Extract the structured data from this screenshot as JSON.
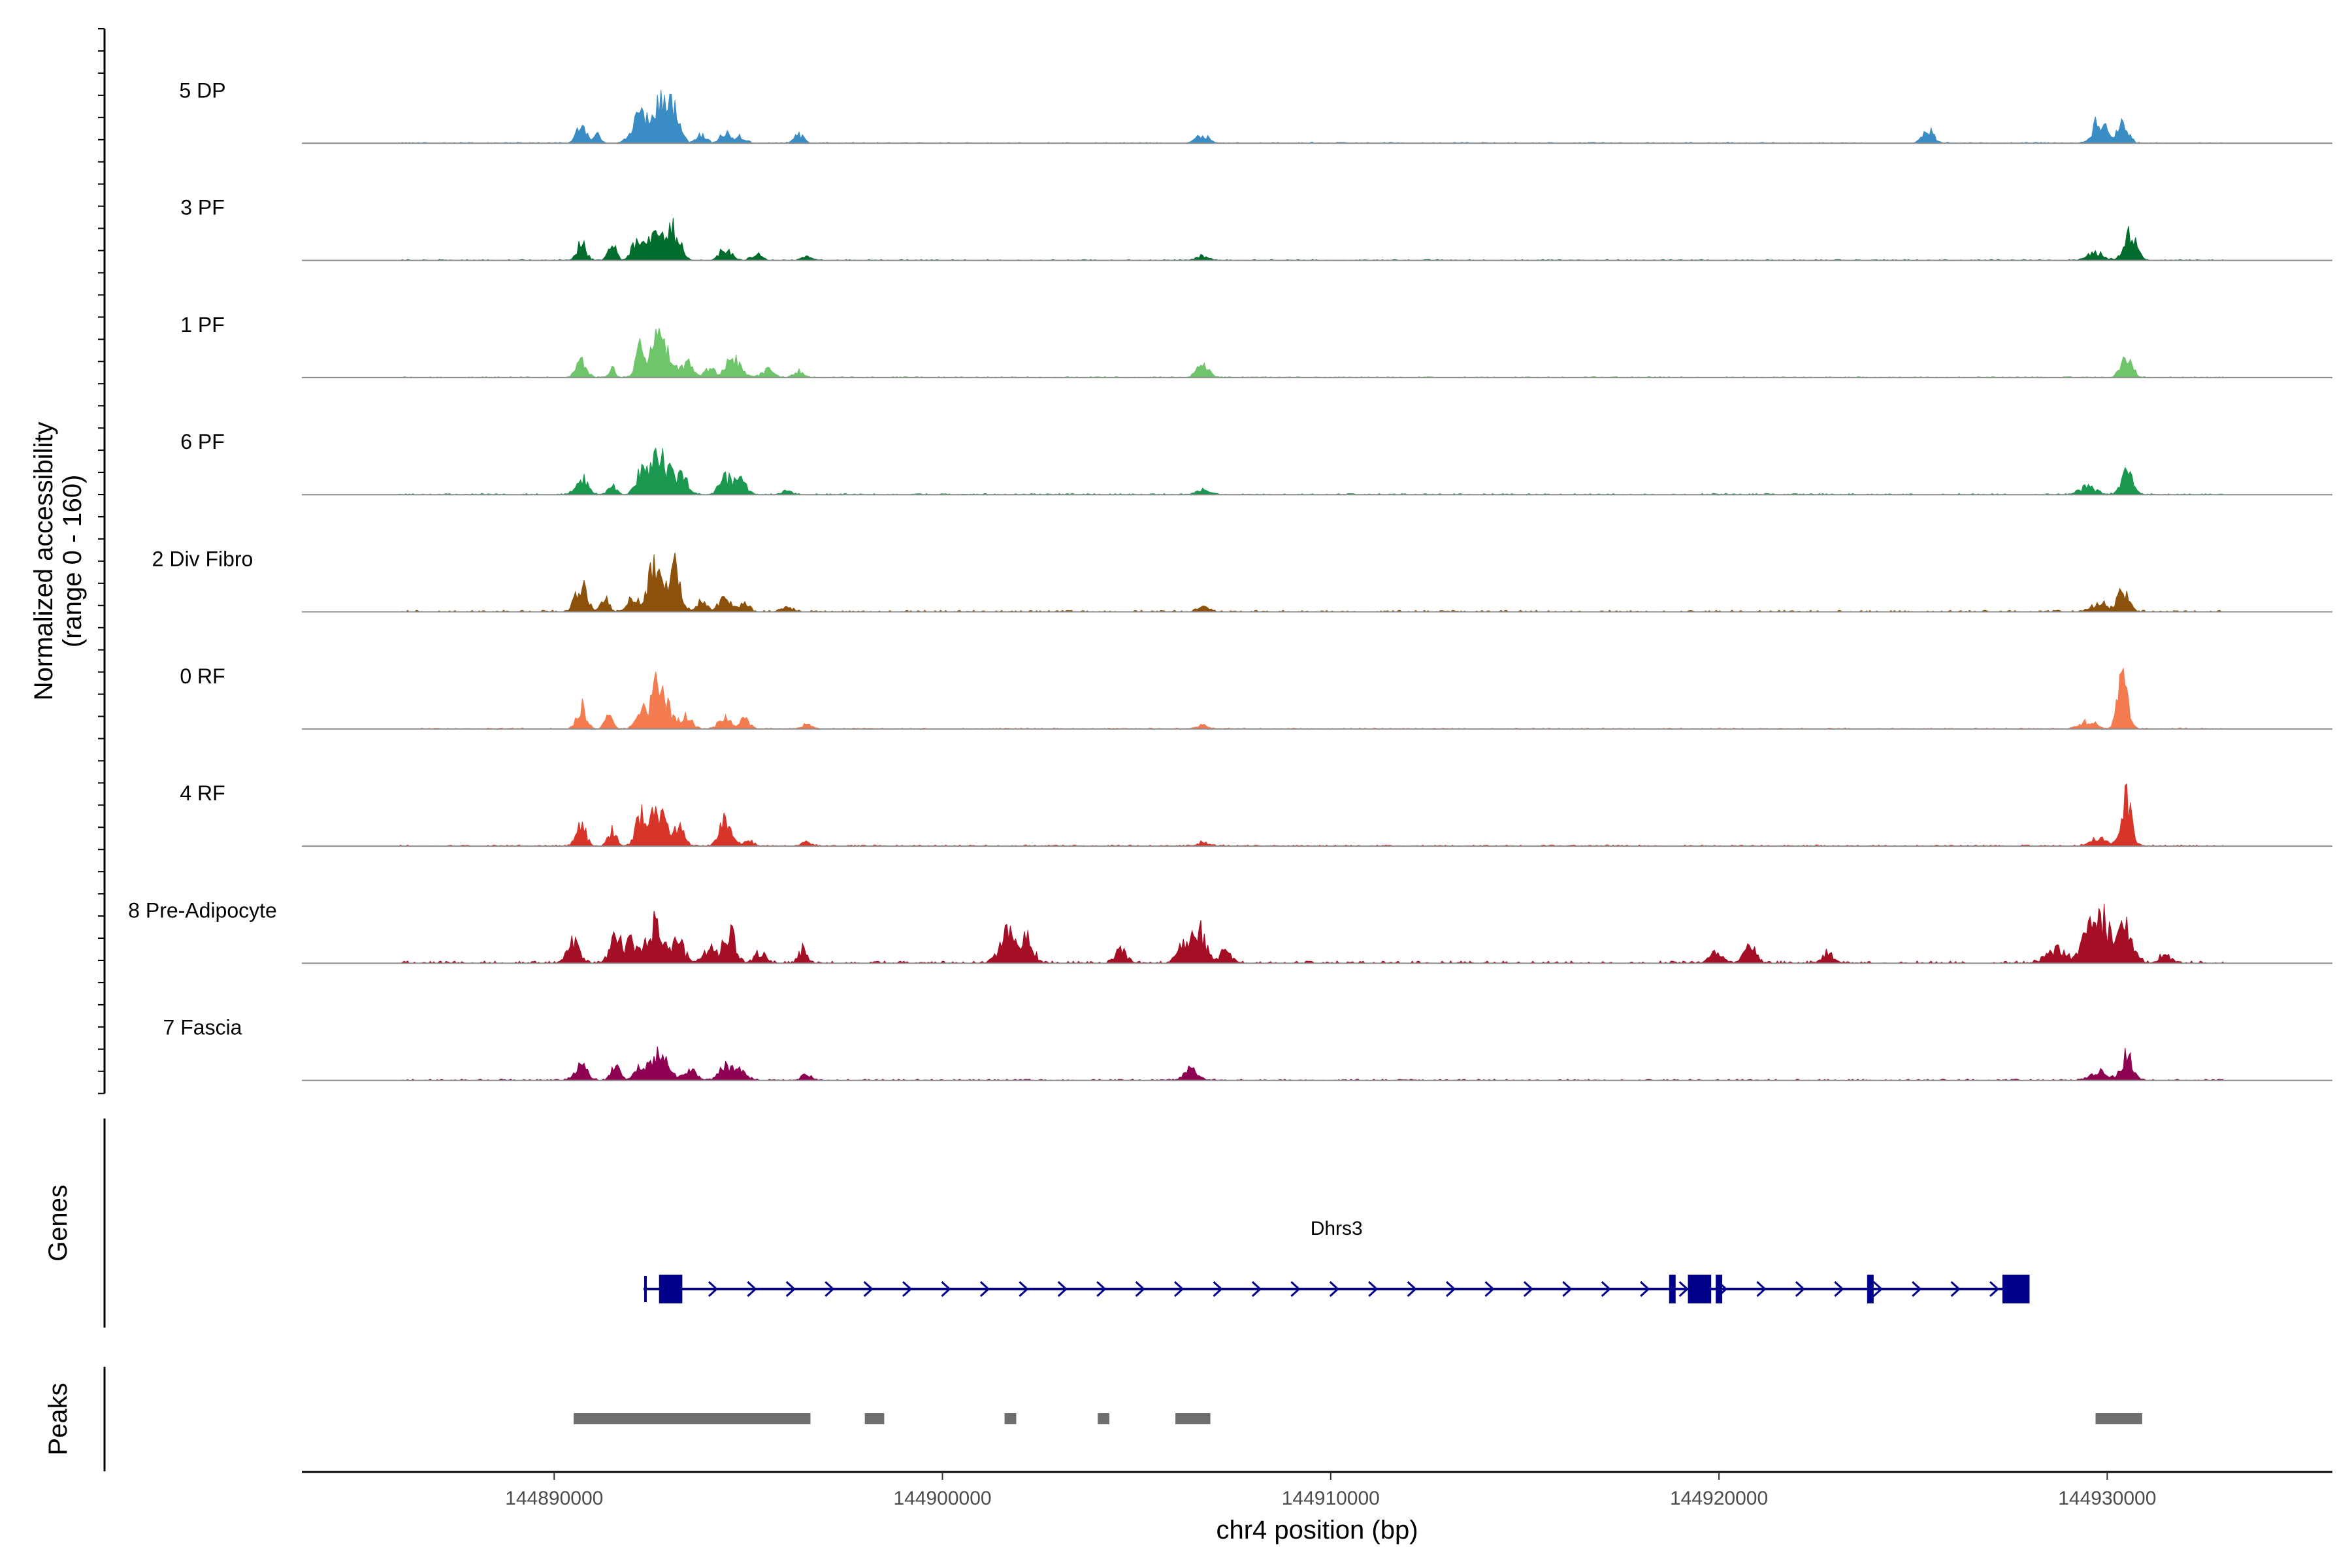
{
  "chart_data": {
    "type": "area",
    "description_units": "chr4 position (bp); normalized accessibility",
    "coverage_ylabel": "Normalized accessibility\n(range 0 - 160)",
    "y_range": [
      0,
      160
    ],
    "x_range": [
      144883500,
      144935800
    ],
    "xlabel": "chr4 position (bp)",
    "x_ticks": [
      144890000,
      144900000,
      144910000,
      144920000,
      144930000
    ],
    "x_tick_labels": [
      "144890000",
      "144900000",
      "144910000",
      "144920000",
      "144930000"
    ],
    "data_start": 144886000,
    "data_end": 144933000,
    "tracks": [
      {
        "name": "5 DP",
        "color": "#3a8cc4",
        "noise": 0.015,
        "peaks": [
          [
            144890700,
            45,
            120
          ],
          [
            144891100,
            20,
            80
          ],
          [
            144892200,
            55,
            200
          ],
          [
            144892700,
            100,
            220
          ],
          [
            144893100,
            60,
            150
          ],
          [
            144893800,
            20,
            120
          ],
          [
            144894400,
            25,
            120
          ],
          [
            144894800,
            18,
            120
          ],
          [
            144896300,
            20,
            120
          ],
          [
            144906700,
            20,
            160
          ],
          [
            144925400,
            30,
            140
          ],
          [
            144929800,
            55,
            160
          ],
          [
            144930400,
            45,
            140
          ]
        ]
      },
      {
        "name": "3 PF",
        "color": "#006d2c",
        "noise": 0.015,
        "peaks": [
          [
            144890700,
            45,
            120
          ],
          [
            144891500,
            35,
            100
          ],
          [
            144892100,
            40,
            120
          ],
          [
            144892600,
            70,
            220
          ],
          [
            144893100,
            70,
            150
          ],
          [
            144894400,
            28,
            150
          ],
          [
            144895200,
            15,
            120
          ],
          [
            144896500,
            10,
            120
          ],
          [
            144906700,
            10,
            160
          ],
          [
            144929700,
            20,
            200
          ],
          [
            144930600,
            70,
            150
          ]
        ]
      },
      {
        "name": "1 PF",
        "color": "#6ec56a",
        "noise": 0.015,
        "peaks": [
          [
            144890700,
            50,
            120
          ],
          [
            144891500,
            20,
            80
          ],
          [
            144892200,
            60,
            120
          ],
          [
            144892700,
            95,
            220
          ],
          [
            144893400,
            35,
            150
          ],
          [
            144894000,
            25,
            120
          ],
          [
            144894600,
            45,
            180
          ],
          [
            144895500,
            18,
            150
          ],
          [
            144896300,
            15,
            120
          ],
          [
            144906700,
            30,
            150
          ],
          [
            144930500,
            40,
            150
          ]
        ]
      },
      {
        "name": "6 PF",
        "color": "#1a9850",
        "noise": 0.018,
        "peaks": [
          [
            144890700,
            40,
            150
          ],
          [
            144891500,
            20,
            100
          ],
          [
            144892200,
            40,
            120
          ],
          [
            144892700,
            85,
            260
          ],
          [
            144893300,
            40,
            150
          ],
          [
            144894400,
            40,
            150
          ],
          [
            144894800,
            35,
            150
          ],
          [
            144896000,
            10,
            120
          ],
          [
            144906700,
            10,
            160
          ],
          [
            144929500,
            18,
            200
          ],
          [
            144930500,
            50,
            150
          ]
        ]
      },
      {
        "name": "2 Div Fibro",
        "color": "#8c510a",
        "noise": 0.025,
        "peaks": [
          [
            144890700,
            60,
            150
          ],
          [
            144891300,
            30,
            100
          ],
          [
            144892000,
            30,
            100
          ],
          [
            144892600,
            100,
            220
          ],
          [
            144893100,
            95,
            150
          ],
          [
            144893800,
            25,
            120
          ],
          [
            144894400,
            35,
            150
          ],
          [
            144894900,
            18,
            120
          ],
          [
            144896000,
            15,
            120
          ],
          [
            144906700,
            10,
            160
          ],
          [
            144929800,
            20,
            200
          ],
          [
            144930400,
            45,
            150
          ]
        ]
      },
      {
        "name": "0 RF",
        "color": "#f47a4f",
        "noise": 0.015,
        "peaks": [
          [
            144890700,
            55,
            120
          ],
          [
            144891400,
            30,
            100
          ],
          [
            144892200,
            35,
            120
          ],
          [
            144892700,
            110,
            220
          ],
          [
            144893400,
            30,
            150
          ],
          [
            144894400,
            28,
            150
          ],
          [
            144894900,
            22,
            120
          ],
          [
            144896500,
            10,
            120
          ],
          [
            144906700,
            8,
            160
          ],
          [
            144929500,
            18,
            200
          ],
          [
            144930400,
            115,
            130
          ]
        ]
      },
      {
        "name": "4 RF",
        "color": "#d8352a",
        "noise": 0.02,
        "peaks": [
          [
            144890700,
            50,
            120
          ],
          [
            144891500,
            40,
            100
          ],
          [
            144892200,
            50,
            120
          ],
          [
            144892600,
            95,
            220
          ],
          [
            144893200,
            40,
            150
          ],
          [
            144894400,
            60,
            150
          ],
          [
            144895000,
            15,
            120
          ],
          [
            144896500,
            10,
            120
          ],
          [
            144906700,
            8,
            160
          ],
          [
            144929800,
            18,
            200
          ],
          [
            144930500,
            110,
            130
          ]
        ]
      },
      {
        "name": "8 Pre-Adipocyte",
        "color": "#a50f25",
        "noise": 0.035,
        "peaks": [
          [
            144890500,
            50,
            150
          ],
          [
            144891600,
            60,
            150
          ],
          [
            144892000,
            45,
            120
          ],
          [
            144892600,
            90,
            220
          ],
          [
            144893200,
            50,
            150
          ],
          [
            144894000,
            35,
            150
          ],
          [
            144894500,
            80,
            150
          ],
          [
            144895300,
            25,
            150
          ],
          [
            144896400,
            30,
            120
          ],
          [
            144901700,
            70,
            220
          ],
          [
            144902200,
            55,
            150
          ],
          [
            144904600,
            30,
            150
          ],
          [
            144906200,
            40,
            150
          ],
          [
            144906600,
            75,
            180
          ],
          [
            144907300,
            30,
            150
          ],
          [
            144919900,
            25,
            150
          ],
          [
            144920800,
            40,
            150
          ],
          [
            144922800,
            25,
            150
          ],
          [
            144928700,
            30,
            250
          ],
          [
            144929500,
            60,
            200
          ],
          [
            144929900,
            95,
            200
          ],
          [
            144930500,
            85,
            180
          ],
          [
            144931500,
            20,
            150
          ]
        ]
      },
      {
        "name": "7 Fascia",
        "color": "#8e0152",
        "noise": 0.02,
        "peaks": [
          [
            144890700,
            35,
            150
          ],
          [
            144891600,
            35,
            120
          ],
          [
            144892200,
            30,
            120
          ],
          [
            144892700,
            60,
            220
          ],
          [
            144893500,
            25,
            150
          ],
          [
            144894400,
            35,
            150
          ],
          [
            144894800,
            30,
            150
          ],
          [
            144896500,
            15,
            120
          ],
          [
            144906400,
            25,
            180
          ],
          [
            144929800,
            20,
            200
          ],
          [
            144930500,
            60,
            150
          ]
        ]
      }
    ],
    "genes_label": "Genes",
    "gene": {
      "name": "Dhrs3",
      "color": "#00008b",
      "start": 144892300,
      "end": 144928000,
      "strand": "+",
      "exons": [
        [
          144892700,
          144893300
        ],
        [
          144919200,
          144919800
        ],
        [
          144927300,
          144928000
        ]
      ],
      "small_exons": [
        144918800,
        144920000,
        144923900
      ]
    },
    "peaks_label": "Peaks",
    "peaks_color": "#6e6e6e",
    "peaks": [
      [
        144890500,
        144896600
      ],
      [
        144898000,
        144898500
      ],
      [
        144901600,
        144901900
      ],
      [
        144904000,
        144904300
      ],
      [
        144906000,
        144906900
      ],
      [
        144929700,
        144930900
      ]
    ]
  }
}
